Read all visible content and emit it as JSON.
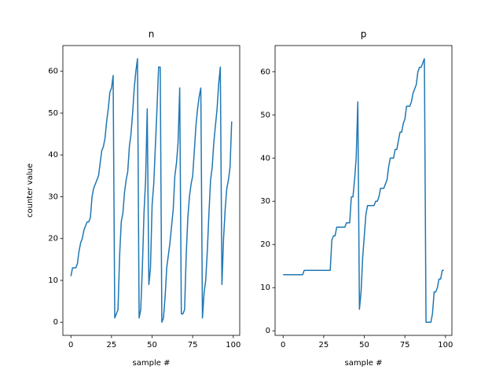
{
  "chart_data": [
    {
      "type": "line",
      "title": "n",
      "xlabel": "sample #",
      "ylabel": "counter value",
      "color": "#1f77b4",
      "x": [
        0,
        1,
        2,
        3,
        4,
        5,
        6,
        7,
        8,
        9,
        10,
        11,
        12,
        13,
        14,
        15,
        16,
        17,
        18,
        19,
        20,
        21,
        22,
        23,
        24,
        25,
        26,
        27,
        28,
        29,
        30,
        31,
        32,
        33,
        34,
        35,
        36,
        37,
        38,
        39,
        40,
        41,
        42,
        43,
        44,
        45,
        46,
        47,
        48,
        49,
        50,
        51,
        52,
        53,
        54,
        55,
        56,
        57,
        58,
        59,
        60,
        61,
        62,
        63,
        64,
        65,
        66,
        67,
        68,
        69,
        70,
        71,
        72,
        73,
        74,
        75,
        76,
        77,
        78,
        79,
        80,
        81,
        82,
        83,
        84,
        85,
        86,
        87,
        88,
        89,
        90,
        91,
        92,
        93,
        94,
        95,
        96,
        97,
        98,
        99
      ],
      "values": [
        11,
        13,
        13,
        13,
        14,
        17,
        19,
        20,
        22,
        23,
        24,
        24,
        25,
        30,
        32,
        33,
        34,
        35,
        38,
        41,
        42,
        44,
        48,
        51,
        55,
        56,
        59,
        1,
        2,
        3,
        16,
        24,
        26,
        31,
        34,
        36,
        42,
        45,
        50,
        56,
        60,
        63,
        1,
        3,
        13,
        26,
        34,
        51,
        9,
        13,
        28,
        33,
        42,
        51,
        61,
        61,
        0,
        1,
        6,
        13,
        16,
        19,
        23,
        27,
        35,
        38,
        43,
        56,
        2,
        2,
        3,
        16,
        25,
        30,
        33,
        35,
        41,
        47,
        51,
        54,
        56,
        1,
        7,
        10,
        17,
        26,
        34,
        37,
        43,
        47,
        51,
        57,
        61,
        9,
        20,
        27,
        32,
        34,
        37,
        48
      ],
      "xlim": [
        -4.95,
        103.95
      ],
      "xticks": [
        0,
        25,
        50,
        75,
        100
      ],
      "ylim": [
        -3.15,
        66.15
      ],
      "yticks": [
        0,
        10,
        20,
        30,
        40,
        50,
        60
      ]
    },
    {
      "type": "line",
      "title": "p",
      "xlabel": "sample #",
      "color": "#1f77b4",
      "x": [
        0,
        1,
        2,
        3,
        4,
        5,
        6,
        7,
        8,
        9,
        10,
        11,
        12,
        13,
        14,
        15,
        16,
        17,
        18,
        19,
        20,
        21,
        22,
        23,
        24,
        25,
        26,
        27,
        28,
        29,
        30,
        31,
        32,
        33,
        34,
        35,
        36,
        37,
        38,
        39,
        40,
        41,
        42,
        43,
        44,
        45,
        46,
        47,
        48,
        49,
        50,
        51,
        52,
        53,
        54,
        55,
        56,
        57,
        58,
        59,
        60,
        61,
        62,
        63,
        64,
        65,
        66,
        67,
        68,
        69,
        70,
        71,
        72,
        73,
        74,
        75,
        76,
        77,
        78,
        79,
        80,
        81,
        82,
        83,
        84,
        85,
        86,
        87,
        88,
        89,
        90,
        91,
        92,
        93,
        94,
        95,
        96,
        97,
        98,
        99
      ],
      "values": [
        13,
        13,
        13,
        13,
        13,
        13,
        13,
        13,
        13,
        13,
        13,
        13,
        13,
        14,
        14,
        14,
        14,
        14,
        14,
        14,
        14,
        14,
        14,
        14,
        14,
        14,
        14,
        14,
        14,
        14,
        21,
        22,
        22,
        24,
        24,
        24,
        24,
        24,
        24,
        25,
        25,
        25,
        31,
        31,
        35,
        40,
        53,
        5,
        9,
        17,
        22,
        27,
        29,
        29,
        29,
        29,
        29,
        30,
        30,
        31,
        33,
        33,
        33,
        34,
        35,
        38,
        40,
        40,
        40,
        42,
        42,
        44,
        46,
        46,
        48,
        49,
        52,
        52,
        52,
        53,
        55,
        56,
        57,
        60,
        61,
        61,
        62,
        63,
        2,
        2,
        2,
        2,
        4,
        9,
        9,
        10,
        12,
        12,
        14,
        14
      ],
      "xlim": [
        -4.95,
        103.95
      ],
      "xticks": [
        0,
        25,
        50,
        75,
        100
      ],
      "ylim": [
        -1.05,
        66.05
      ],
      "yticks": [
        0,
        10,
        20,
        30,
        40,
        50,
        60
      ]
    }
  ]
}
